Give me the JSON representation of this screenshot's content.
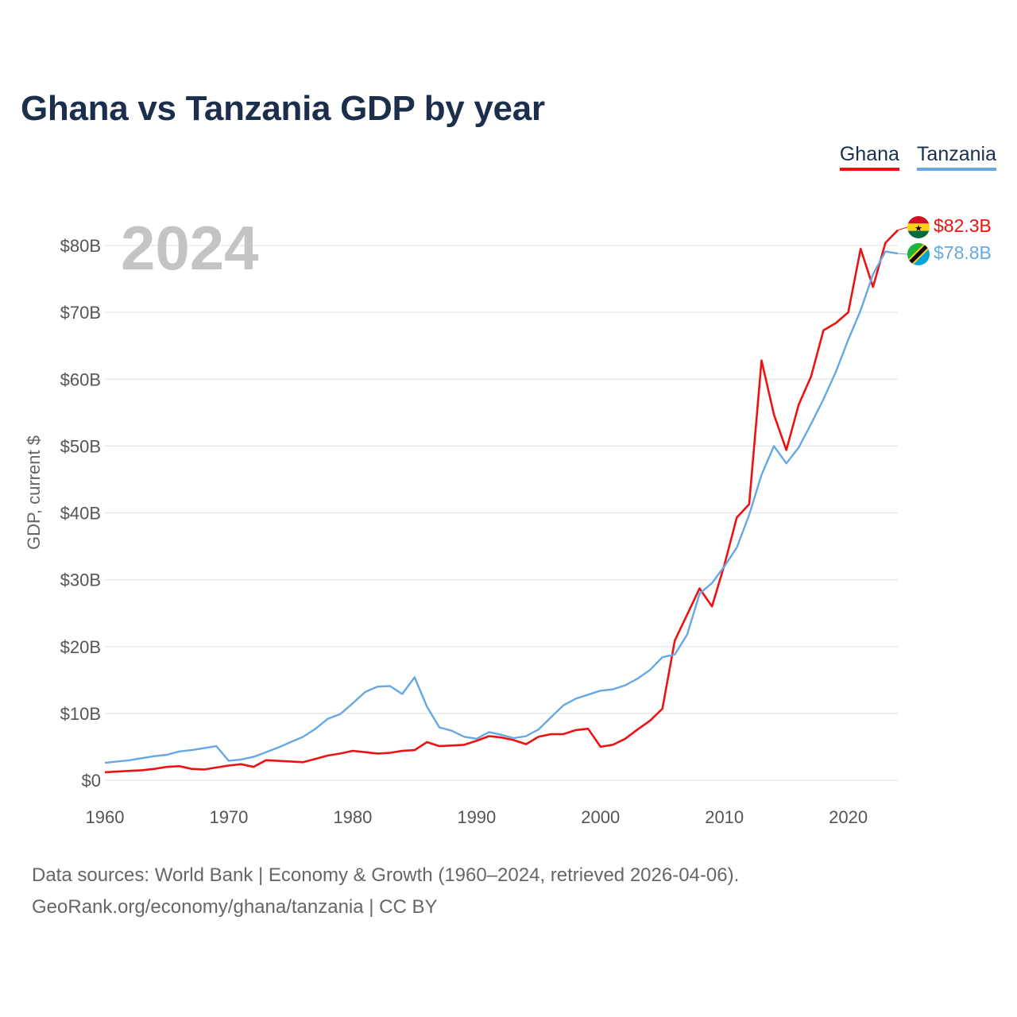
{
  "header": {
    "title": "Ghana vs Tanzania GDP by year"
  },
  "legend": [
    {
      "label": "Ghana",
      "color": "#ee1111"
    },
    {
      "label": "Tanzania",
      "color": "#65a8e3"
    }
  ],
  "year_display": "2024",
  "footer": {
    "line1": "Data sources: World Bank | Economy & Growth (1960–2024, retrieved 2026-04-06).",
    "line2": "GeoRank.org/economy/ghana/tanzania | CC BY"
  },
  "chart_data": {
    "type": "line",
    "title": "Ghana vs Tanzania GDP by year",
    "xlabel": "",
    "ylabel": "GDP, current $",
    "xlim": [
      1960,
      2024
    ],
    "ylim": [
      0,
      80
    ],
    "y_unit": "billion USD",
    "x_ticks": [
      "1960",
      "1970",
      "1980",
      "1990",
      "2000",
      "2010",
      "2020"
    ],
    "y_ticks": [
      "$0",
      "$10B",
      "$20B",
      "$30B",
      "$40B",
      "$50B",
      "$60B",
      "$70B",
      "$80B"
    ],
    "grid": true,
    "legend_position": "top-right",
    "x": [
      1960,
      1961,
      1962,
      1963,
      1964,
      1965,
      1966,
      1967,
      1968,
      1969,
      1970,
      1971,
      1972,
      1973,
      1974,
      1975,
      1976,
      1977,
      1978,
      1979,
      1980,
      1981,
      1982,
      1983,
      1984,
      1985,
      1986,
      1987,
      1988,
      1989,
      1990,
      1991,
      1992,
      1993,
      1994,
      1995,
      1996,
      1997,
      1998,
      1999,
      2000,
      2001,
      2002,
      2003,
      2004,
      2005,
      2006,
      2007,
      2008,
      2009,
      2010,
      2011,
      2012,
      2013,
      2014,
      2015,
      2016,
      2017,
      2018,
      2019,
      2020,
      2021,
      2022,
      2023,
      2024
    ],
    "series": [
      {
        "name": "Ghana",
        "color": "#ee1111",
        "end_label": "$82.3B",
        "values": [
          1.2,
          1.3,
          1.4,
          1.5,
          1.7,
          2.0,
          2.1,
          1.7,
          1.6,
          1.9,
          2.2,
          2.4,
          2.0,
          3.0,
          2.9,
          2.8,
          2.7,
          3.2,
          3.7,
          4.0,
          4.4,
          4.2,
          4.0,
          4.1,
          4.4,
          4.5,
          5.7,
          5.1,
          5.2,
          5.3,
          5.9,
          6.6,
          6.4,
          6.0,
          5.4,
          6.5,
          6.9,
          6.9,
          7.5,
          7.7,
          5.0,
          5.3,
          6.2,
          7.6,
          8.9,
          10.7,
          20.9,
          24.8,
          28.7,
          26.0,
          32.2,
          39.3,
          41.3,
          62.8,
          54.7,
          49.4,
          56.2,
          60.4,
          67.3,
          68.4,
          70.0,
          79.5,
          73.8,
          80.4,
          82.3
        ]
      },
      {
        "name": "Tanzania",
        "color": "#65a8e3",
        "end_label": "$78.8B",
        "values": [
          2.6,
          2.8,
          3.0,
          3.3,
          3.6,
          3.8,
          4.3,
          4.5,
          4.8,
          5.1,
          2.9,
          3.1,
          3.5,
          4.2,
          4.9,
          5.7,
          6.5,
          7.7,
          9.2,
          9.9,
          11.5,
          13.2,
          14.0,
          14.1,
          12.9,
          15.4,
          11.0,
          7.9,
          7.4,
          6.5,
          6.2,
          7.2,
          6.8,
          6.3,
          6.6,
          7.6,
          9.4,
          11.2,
          12.2,
          12.8,
          13.4,
          13.6,
          14.2,
          15.2,
          16.5,
          18.4,
          18.8,
          21.8,
          27.9,
          29.5,
          32.0,
          34.8,
          39.7,
          45.7,
          50.0,
          47.4,
          49.8,
          53.3,
          57.0,
          61.1,
          65.9,
          70.3,
          75.7,
          79.1,
          78.8
        ]
      }
    ]
  },
  "flags": {
    "ghana": {
      "colors": [
        "#ce1126",
        "#fcd116",
        "#006b3f"
      ],
      "star_color": "#000000"
    },
    "tanzania": {
      "colors": [
        "#1eb53a",
        "#00a3dd",
        "#000000",
        "#fcd116"
      ]
    }
  }
}
